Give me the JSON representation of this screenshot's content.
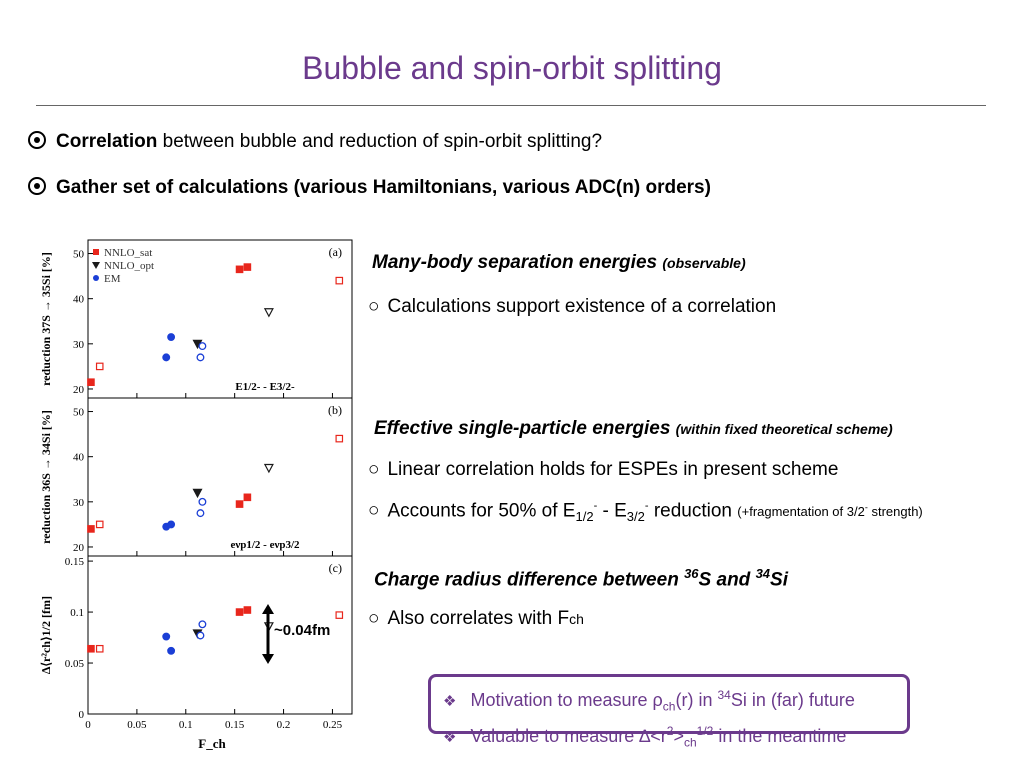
{
  "title": "Bubble and spin-orbit splitting",
  "bullets": [
    {
      "bold": "Correlation",
      "rest": " between bubble and reduction of spin-orbit splitting?"
    },
    {
      "bold": "Gather set of calculations (various Hamiltonians, various ADC(n) orders)",
      "rest": ""
    }
  ],
  "sections": {
    "s1_head": "Many-body separation energies",
    "s1_note": "(observable)",
    "s1_item": "Calculations support existence of a correlation",
    "s2_head": "Effective single-particle energies",
    "s2_note": "(within fixed theoretical scheme)",
    "s2_item1": "Linear correlation holds for ESPEs in present scheme",
    "s2_item2_a": "Accounts for 50% of E",
    "s2_item2_b": " - E",
    "s2_item2_c": " reduction",
    "s2_item2_note_a": "(+fragmentation of 3/2",
    "s2_item2_note_b": " strength)",
    "s3_head_a": "Charge radius difference between ",
    "s3_head_b": "S and ",
    "s3_head_c": "Si",
    "s3_item_a": "Also correlates with F",
    "s3_item_b": "ch"
  },
  "arrow_label": "~0.04fm",
  "box": {
    "line1_a": "Motivation to measure ρ",
    "line1_b": "ch",
    "line1_c": "(r) in ",
    "line1_d": "34",
    "line1_e": "Si in (far) future",
    "line2_a": "Valuable to measure ∆<r",
    "line2_b": "2",
    "line2_c": ">",
    "line2_d": "ch",
    "line2_e": "1/2",
    "line2_f": " in the meantime"
  },
  "chart_data": {
    "type": "scatter",
    "xlabel": "F_ch",
    "xlim": [
      0,
      0.27
    ],
    "xticks": [
      "0",
      "0.05",
      "0.1",
      "0.15",
      "0.2",
      "0.25"
    ],
    "legend": [
      "NNLO_sat",
      "NNLO_opt",
      "EM"
    ],
    "colors": {
      "NNLO_sat": "#e8261c",
      "NNLO_opt": "#1a1a1a",
      "EM": "#1b3fd6"
    },
    "panels": [
      {
        "tag": "(a)",
        "ylabel": "reduction 37S → 35Si [%]",
        "ylim": [
          18,
          53
        ],
        "yticks": [
          20,
          30,
          40,
          50
        ],
        "annotation": "E1/2- - E3/2-",
        "points": [
          {
            "s": "NNLO_sat",
            "f": 1,
            "x": 0.003,
            "y": 21.5
          },
          {
            "s": "NNLO_sat",
            "f": 0,
            "x": 0.012,
            "y": 25.0
          },
          {
            "s": "NNLO_sat",
            "f": 1,
            "x": 0.155,
            "y": 46.5
          },
          {
            "s": "NNLO_sat",
            "f": 1,
            "x": 0.163,
            "y": 47.0
          },
          {
            "s": "NNLO_sat",
            "f": 0,
            "x": 0.257,
            "y": 44.0
          },
          {
            "s": "NNLO_opt",
            "f": 1,
            "x": 0.112,
            "y": 30.0
          },
          {
            "s": "NNLO_opt",
            "f": 0,
            "x": 0.185,
            "y": 37.0
          },
          {
            "s": "EM",
            "f": 1,
            "x": 0.08,
            "y": 27.0
          },
          {
            "s": "EM",
            "f": 1,
            "x": 0.085,
            "y": 31.5
          },
          {
            "s": "EM",
            "f": 0,
            "x": 0.115,
            "y": 27.0
          },
          {
            "s": "EM",
            "f": 0,
            "x": 0.117,
            "y": 29.5
          }
        ]
      },
      {
        "tag": "(b)",
        "ylabel": "reduction 36S → 34Si [%]",
        "ylim": [
          18,
          53
        ],
        "yticks": [
          20,
          30,
          40,
          50
        ],
        "annotation": "eνp1/2 - eνp3/2",
        "points": [
          {
            "s": "NNLO_sat",
            "f": 1,
            "x": 0.003,
            "y": 24.0
          },
          {
            "s": "NNLO_sat",
            "f": 0,
            "x": 0.012,
            "y": 25.0
          },
          {
            "s": "NNLO_sat",
            "f": 1,
            "x": 0.155,
            "y": 29.5
          },
          {
            "s": "NNLO_sat",
            "f": 1,
            "x": 0.163,
            "y": 31.0
          },
          {
            "s": "NNLO_sat",
            "f": 0,
            "x": 0.257,
            "y": 44.0
          },
          {
            "s": "NNLO_opt",
            "f": 1,
            "x": 0.112,
            "y": 32.0
          },
          {
            "s": "NNLO_opt",
            "f": 0,
            "x": 0.185,
            "y": 37.5
          },
          {
            "s": "EM",
            "f": 1,
            "x": 0.08,
            "y": 24.5
          },
          {
            "s": "EM",
            "f": 1,
            "x": 0.085,
            "y": 25.0
          },
          {
            "s": "EM",
            "f": 0,
            "x": 0.115,
            "y": 27.5
          },
          {
            "s": "EM",
            "f": 0,
            "x": 0.117,
            "y": 30.0
          }
        ]
      },
      {
        "tag": "(c)",
        "ylabel": "∆⟨r²ch⟩1/2 [fm]",
        "ylim": [
          0,
          0.155
        ],
        "yticks": [
          0,
          0.05,
          0.1,
          0.15
        ],
        "annotation": "",
        "points": [
          {
            "s": "NNLO_sat",
            "f": 1,
            "x": 0.003,
            "y": 0.064
          },
          {
            "s": "NNLO_sat",
            "f": 0,
            "x": 0.012,
            "y": 0.064
          },
          {
            "s": "NNLO_sat",
            "f": 1,
            "x": 0.155,
            "y": 0.1
          },
          {
            "s": "NNLO_sat",
            "f": 1,
            "x": 0.163,
            "y": 0.102
          },
          {
            "s": "NNLO_sat",
            "f": 0,
            "x": 0.257,
            "y": 0.097
          },
          {
            "s": "NNLO_opt",
            "f": 1,
            "x": 0.112,
            "y": 0.079
          },
          {
            "s": "NNLO_opt",
            "f": 0,
            "x": 0.185,
            "y": 0.086
          },
          {
            "s": "EM",
            "f": 1,
            "x": 0.08,
            "y": 0.076
          },
          {
            "s": "EM",
            "f": 1,
            "x": 0.085,
            "y": 0.062
          },
          {
            "s": "EM",
            "f": 0,
            "x": 0.115,
            "y": 0.077
          },
          {
            "s": "EM",
            "f": 0,
            "x": 0.117,
            "y": 0.088
          }
        ]
      }
    ]
  }
}
